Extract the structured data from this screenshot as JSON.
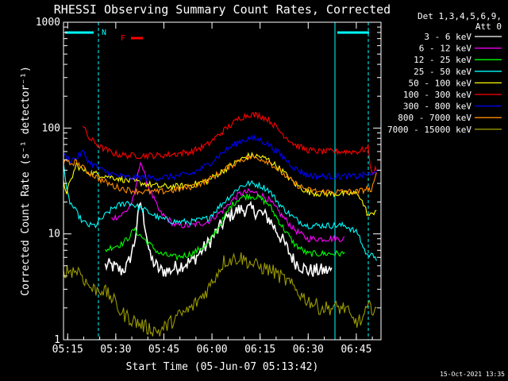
{
  "chart_data": {
    "type": "line",
    "title": "RHESSI Observing Summary Count Rates, Corrected",
    "xlabel": "Start Time (05-Jun-07 05:13:42)",
    "ylabel": "Corrected Count Rate (s⁻¹ detector⁻¹)",
    "yscale": "log",
    "ylim": [
      1,
      1000
    ],
    "xlim_minutes": [
      0,
      99
    ],
    "x_ticks": [
      {
        "m": 1.3,
        "label": "05:15"
      },
      {
        "m": 16.3,
        "label": "05:30"
      },
      {
        "m": 31.3,
        "label": "05:45"
      },
      {
        "m": 46.3,
        "label": "06:00"
      },
      {
        "m": 61.3,
        "label": "06:15"
      },
      {
        "m": 76.3,
        "label": "06:30"
      },
      {
        "m": 91.3,
        "label": "06:45"
      }
    ],
    "y_ticks": [
      {
        "v": 1,
        "label": "1"
      },
      {
        "v": 10,
        "label": "10"
      },
      {
        "v": 100,
        "label": "100"
      },
      {
        "v": 1000,
        "label": "1000"
      }
    ],
    "legend": {
      "header": [
        "Det 1,3,4,5,6,9,",
        "Att 0"
      ],
      "position": "right"
    },
    "flags": {
      "N_label": "N",
      "F_label": "F",
      "night_color": "#00ffff",
      "flare_color": "#ff0000"
    },
    "footer_date": "15-Oct-2021 13:35",
    "series": [
      {
        "name": "3 - 6 keV",
        "color": "#ffffff",
        "x": [
          0,
          2,
          5,
          10,
          13,
          15,
          18,
          20,
          22,
          24,
          25.5,
          27,
          30,
          33,
          36,
          40,
          45,
          50,
          52,
          55,
          58,
          61,
          64,
          68,
          72,
          76,
          80,
          84,
          88,
          92,
          95,
          96
        ],
        "y": [
          null,
          null,
          null,
          null,
          5,
          5,
          4.5,
          5,
          8,
          20,
          12,
          6,
          4.5,
          4.5,
          5,
          5.5,
          8,
          13,
          15,
          17,
          17,
          16,
          14,
          9,
          5.5,
          4.5,
          4.5,
          4.5,
          null,
          null,
          null,
          null
        ]
      },
      {
        "name": "6 - 12 keV",
        "color": "#ff00ff",
        "x": [
          0,
          2,
          5,
          10,
          15,
          18,
          20,
          22,
          24,
          26,
          30,
          35,
          40,
          45,
          50,
          52,
          55,
          58,
          61,
          64,
          68,
          72,
          76,
          80,
          84,
          88,
          92,
          95,
          96
        ],
        "y": [
          null,
          null,
          null,
          null,
          14,
          15,
          17,
          22,
          50,
          30,
          16,
          12,
          12,
          13,
          17,
          20,
          24,
          25,
          24,
          21,
          15,
          11,
          9,
          9,
          9,
          9,
          null,
          null,
          null
        ]
      },
      {
        "name": "12 - 25 keV",
        "color": "#00ff00",
        "x": [
          0,
          2,
          5,
          10,
          13,
          15,
          18,
          20,
          22,
          25,
          30,
          35,
          40,
          45,
          50,
          52,
          55,
          58,
          61,
          64,
          68,
          72,
          76,
          80,
          84,
          88,
          92,
          95,
          96
        ],
        "y": [
          null,
          null,
          null,
          null,
          7,
          7.5,
          8,
          9,
          11,
          9,
          6.5,
          6,
          6.5,
          8,
          14,
          18,
          22,
          23,
          22,
          19,
          12,
          8,
          6.5,
          6.5,
          6.5,
          6.5,
          null,
          null,
          null
        ]
      },
      {
        "name": "25 - 50 keV",
        "color": "#00ffff",
        "x": [
          0,
          1,
          2,
          4,
          6,
          8,
          10,
          12,
          14,
          16,
          20,
          25,
          30,
          35,
          40,
          45,
          50,
          55,
          58,
          61,
          64,
          68,
          72,
          76,
          80,
          84,
          88,
          92,
          93,
          95,
          96,
          98
        ],
        "y": [
          50,
          25,
          20,
          16,
          13,
          12,
          12,
          14,
          16,
          18,
          20,
          17,
          14,
          13,
          13,
          14,
          20,
          28,
          30,
          29,
          26,
          18,
          14,
          12,
          12,
          12,
          12,
          10,
          8,
          6,
          7,
          5
        ]
      },
      {
        "name": "50 - 100 keV",
        "color": "#ffff00",
        "x": [
          0,
          1,
          2,
          4,
          6,
          8,
          12,
          16,
          20,
          25,
          30,
          35,
          40,
          45,
          50,
          55,
          58,
          61,
          64,
          68,
          72,
          76,
          80,
          84,
          88,
          92,
          95,
          96,
          98
        ],
        "y": [
          30,
          25,
          30,
          45,
          40,
          38,
          36,
          34,
          32,
          30,
          28,
          28,
          29,
          32,
          40,
          50,
          55,
          54,
          50,
          40,
          30,
          25,
          24,
          24,
          24,
          24,
          15,
          15,
          18
        ]
      },
      {
        "name": "100 - 300 keV",
        "color": "#ff0000",
        "x": [
          0,
          4,
          6,
          8,
          12,
          16,
          20,
          25,
          30,
          35,
          40,
          45,
          50,
          55,
          58,
          61,
          64,
          68,
          72,
          76,
          80,
          84,
          88,
          92,
          95,
          96,
          98
        ],
        "y": [
          null,
          null,
          105,
          80,
          65,
          57,
          55,
          55,
          55,
          57,
          60,
          70,
          95,
          125,
          135,
          132,
          120,
          90,
          70,
          62,
          60,
          60,
          60,
          60,
          65,
          38,
          42
        ]
      },
      {
        "name": "300 - 800 keV",
        "color": "#0000ff",
        "x": [
          0,
          2,
          4,
          6,
          8,
          12,
          16,
          20,
          25,
          30,
          35,
          40,
          45,
          50,
          55,
          58,
          61,
          64,
          68,
          72,
          76,
          80,
          84,
          88,
          92,
          95,
          96,
          98
        ],
        "y": [
          55,
          50,
          52,
          60,
          48,
          40,
          36,
          34,
          34,
          34,
          35,
          37,
          45,
          60,
          75,
          80,
          78,
          70,
          55,
          42,
          36,
          35,
          35,
          35,
          35,
          37,
          35,
          43
        ]
      },
      {
        "name": "800 - 7000 keV",
        "color": "#ff8c00",
        "x": [
          0,
          2,
          4,
          6,
          8,
          12,
          16,
          20,
          25,
          30,
          35,
          40,
          45,
          50,
          55,
          58,
          61,
          64,
          68,
          72,
          76,
          80,
          84,
          88,
          92,
          95,
          96,
          98
        ],
        "y": [
          48,
          46,
          48,
          42,
          38,
          32,
          28,
          26,
          25,
          25,
          26,
          28,
          32,
          40,
          50,
          53,
          52,
          48,
          38,
          30,
          26,
          25,
          25,
          25,
          25,
          27,
          25,
          40
        ]
      },
      {
        "name": "7000 - 15000 keV",
        "color": "#999900",
        "x": [
          0,
          3,
          5,
          7,
          9,
          12,
          15,
          18,
          22,
          26,
          30,
          35,
          40,
          45,
          50,
          55,
          60,
          65,
          70,
          75,
          80,
          85,
          88,
          90,
          93,
          95,
          98
        ],
        "y": [
          4.5,
          4.5,
          4.5,
          3.5,
          3,
          3,
          2.5,
          1.8,
          1.5,
          1.3,
          1.2,
          1.6,
          2,
          3,
          5.5,
          6,
          5,
          4.5,
          3.5,
          2.5,
          2,
          2,
          2,
          1.5,
          1.5,
          2,
          2
        ]
      }
    ]
  }
}
